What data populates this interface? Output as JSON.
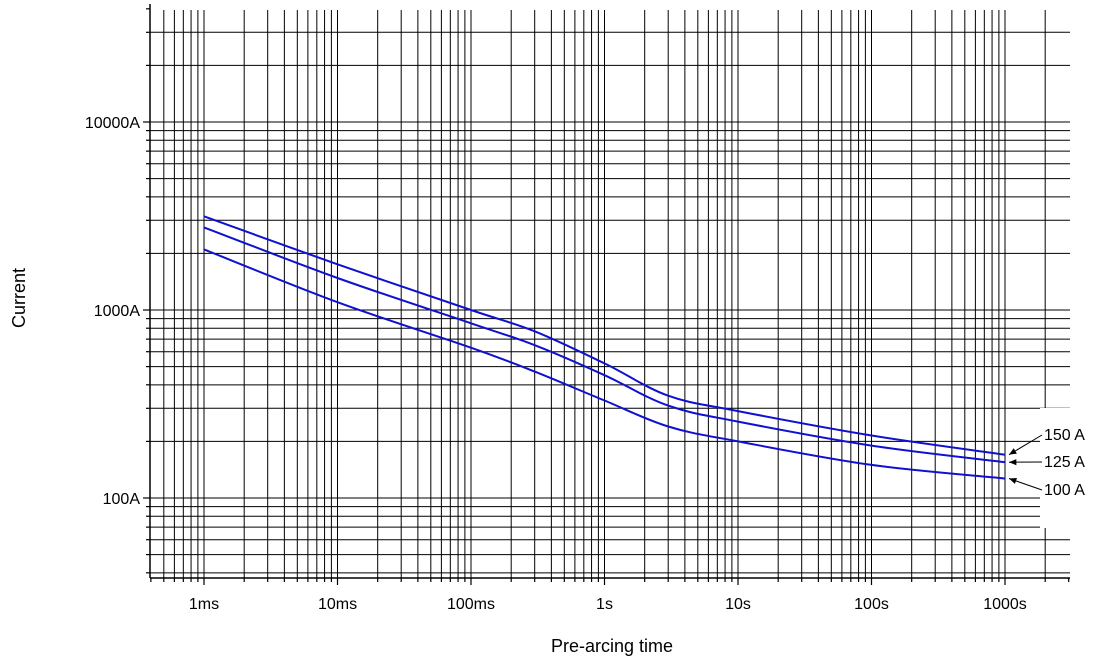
{
  "chart_data": {
    "type": "line",
    "title": "",
    "xlabel": "Pre-arcing time",
    "ylabel": "Current",
    "x_scale": "log",
    "y_scale": "log",
    "x_unit": "s",
    "y_unit": "A",
    "xlim": [
      0.0004,
      2000
    ],
    "ylim": [
      40,
      40000
    ],
    "grid": true,
    "x_ticks": [
      {
        "value": 0.001,
        "label": "1ms"
      },
      {
        "value": 0.01,
        "label": "10ms"
      },
      {
        "value": 0.1,
        "label": "100ms"
      },
      {
        "value": 1,
        "label": "1s"
      },
      {
        "value": 10,
        "label": "10s"
      },
      {
        "value": 100,
        "label": "100s"
      },
      {
        "value": 1000,
        "label": "1000s"
      }
    ],
    "y_ticks": [
      {
        "value": 100,
        "label": "100A"
      },
      {
        "value": 1000,
        "label": "1000A"
      },
      {
        "value": 10000,
        "label": "10000A"
      }
    ],
    "series_color": "#1010d0",
    "series": [
      {
        "name": "150 A",
        "x": [
          0.001,
          0.01,
          0.1,
          0.3,
          1,
          3,
          10,
          100,
          1000
        ],
        "y": [
          3150,
          1750,
          1000,
          770,
          520,
          350,
          290,
          215,
          170
        ]
      },
      {
        "name": "125 A",
        "x": [
          0.001,
          0.01,
          0.1,
          0.3,
          1,
          3,
          10,
          100,
          1000
        ],
        "y": [
          2750,
          1480,
          850,
          650,
          450,
          310,
          255,
          190,
          155
        ]
      },
      {
        "name": "100 A",
        "x": [
          0.001,
          0.01,
          0.1,
          0.3,
          1,
          3,
          10,
          100,
          1000
        ],
        "y": [
          2100,
          1100,
          630,
          470,
          330,
          240,
          200,
          150,
          127
        ]
      }
    ]
  }
}
